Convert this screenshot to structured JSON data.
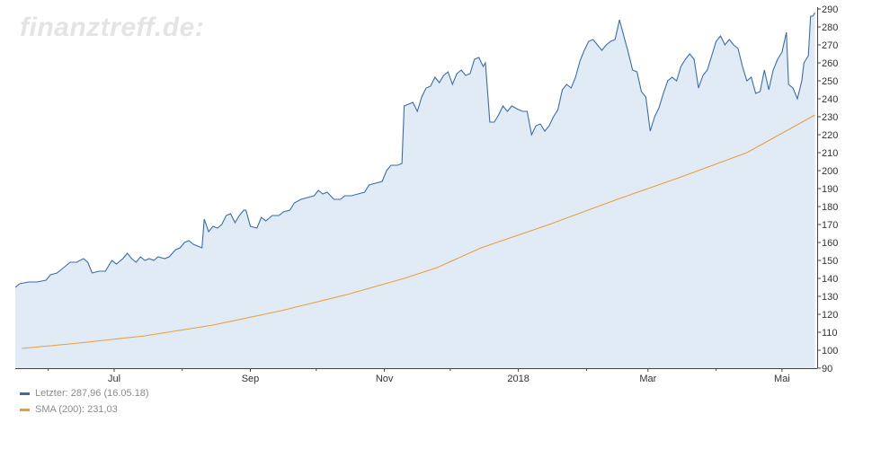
{
  "watermark": "finanztreff.de:",
  "colors": {
    "price_line": "#3a6ea8",
    "price_fill": "#e1ebf6",
    "sma_line": "#e8a03c",
    "axis": "#444444",
    "label": "#333333",
    "legend_text": "#8c8c8c"
  },
  "chart_data": {
    "type": "area",
    "xlim": [
      "2017-05-17",
      "2018-05-17"
    ],
    "ylim": [
      90,
      290
    ],
    "y_ticks": [
      90,
      100,
      110,
      120,
      130,
      140,
      150,
      160,
      170,
      180,
      190,
      200,
      210,
      220,
      230,
      240,
      250,
      260,
      270,
      280,
      290
    ],
    "x_tick_labels": [
      {
        "date": "2017-07-01",
        "label": "Jul"
      },
      {
        "date": "2017-09-01",
        "label": "Sep"
      },
      {
        "date": "2017-11-01",
        "label": "Nov"
      },
      {
        "date": "2018-01-01",
        "label": "2018"
      },
      {
        "date": "2018-03-01",
        "label": "Mar"
      },
      {
        "date": "2018-05-01",
        "label": "Mai"
      }
    ],
    "x_minor_ticks": [
      "2017-06-01",
      "2017-08-01",
      "2017-10-01",
      "2017-12-01",
      "2018-02-01",
      "2018-04-01"
    ],
    "grid": false,
    "legend_position": "bottom-left",
    "series": [
      {
        "name": "Letzter",
        "legend": "Letzter: 287,96 (16.05.18)",
        "points": [
          [
            "2017-05-17",
            135
          ],
          [
            "2017-05-19",
            137
          ],
          [
            "2017-05-23",
            138
          ],
          [
            "2017-05-27",
            138
          ],
          [
            "2017-05-31",
            139
          ],
          [
            "2017-06-02",
            142
          ],
          [
            "2017-06-05",
            143
          ],
          [
            "2017-06-08",
            146
          ],
          [
            "2017-06-11",
            149
          ],
          [
            "2017-06-14",
            149
          ],
          [
            "2017-06-17",
            151
          ],
          [
            "2017-06-19",
            149
          ],
          [
            "2017-06-21",
            143
          ],
          [
            "2017-06-24",
            144
          ],
          [
            "2017-06-27",
            144
          ],
          [
            "2017-06-30",
            150
          ],
          [
            "2017-07-02",
            148
          ],
          [
            "2017-07-05",
            151
          ],
          [
            "2017-07-07",
            154
          ],
          [
            "2017-07-09",
            151
          ],
          [
            "2017-07-11",
            149
          ],
          [
            "2017-07-13",
            152
          ],
          [
            "2017-07-15",
            150
          ],
          [
            "2017-07-17",
            151
          ],
          [
            "2017-07-19",
            150
          ],
          [
            "2017-07-21",
            152
          ],
          [
            "2017-07-24",
            151
          ],
          [
            "2017-07-26",
            152
          ],
          [
            "2017-07-29",
            156
          ],
          [
            "2017-07-31",
            157
          ],
          [
            "2017-08-02",
            160
          ],
          [
            "2017-08-04",
            161
          ],
          [
            "2017-08-06",
            159
          ],
          [
            "2017-08-08",
            158
          ],
          [
            "2017-08-10",
            157
          ],
          [
            "2017-08-11",
            173
          ],
          [
            "2017-08-13",
            166
          ],
          [
            "2017-08-15",
            169
          ],
          [
            "2017-08-17",
            168
          ],
          [
            "2017-08-19",
            170
          ],
          [
            "2017-08-21",
            175
          ],
          [
            "2017-08-23",
            176
          ],
          [
            "2017-08-25",
            171
          ],
          [
            "2017-08-27",
            175
          ],
          [
            "2017-08-29",
            178
          ],
          [
            "2017-08-30",
            178
          ],
          [
            "2017-09-01",
            169
          ],
          [
            "2017-09-04",
            168
          ],
          [
            "2017-09-06",
            174
          ],
          [
            "2017-09-08",
            172
          ],
          [
            "2017-09-11",
            175
          ],
          [
            "2017-09-14",
            175
          ],
          [
            "2017-09-16",
            177
          ],
          [
            "2017-09-19",
            178
          ],
          [
            "2017-09-21",
            182
          ],
          [
            "2017-09-24",
            184
          ],
          [
            "2017-09-27",
            185
          ],
          [
            "2017-09-30",
            186
          ],
          [
            "2017-10-02",
            189
          ],
          [
            "2017-10-04",
            187
          ],
          [
            "2017-10-06",
            188
          ],
          [
            "2017-10-09",
            184
          ],
          [
            "2017-10-12",
            184
          ],
          [
            "2017-10-14",
            186
          ],
          [
            "2017-10-17",
            186
          ],
          [
            "2017-10-20",
            187
          ],
          [
            "2017-10-23",
            188
          ],
          [
            "2017-10-25",
            192
          ],
          [
            "2017-10-28",
            193
          ],
          [
            "2017-10-31",
            194
          ],
          [
            "2017-11-02",
            200
          ],
          [
            "2017-11-04",
            203
          ],
          [
            "2017-11-07",
            203
          ],
          [
            "2017-11-09",
            204
          ],
          [
            "2017-11-10",
            236
          ],
          [
            "2017-11-12",
            237
          ],
          [
            "2017-11-14",
            238
          ],
          [
            "2017-11-16",
            233
          ],
          [
            "2017-11-18",
            241
          ],
          [
            "2017-11-20",
            246
          ],
          [
            "2017-11-22",
            247
          ],
          [
            "2017-11-24",
            252
          ],
          [
            "2017-11-26",
            249
          ],
          [
            "2017-11-28",
            253
          ],
          [
            "2017-11-30",
            255
          ],
          [
            "2017-12-02",
            248
          ],
          [
            "2017-12-04",
            254
          ],
          [
            "2017-12-06",
            256
          ],
          [
            "2017-12-08",
            253
          ],
          [
            "2017-12-10",
            254
          ],
          [
            "2017-12-12",
            262
          ],
          [
            "2017-12-14",
            263
          ],
          [
            "2017-12-16",
            258
          ],
          [
            "2017-12-17",
            260
          ],
          [
            "2017-12-19",
            227
          ],
          [
            "2017-12-21",
            227
          ],
          [
            "2017-12-23",
            231
          ],
          [
            "2017-12-25",
            236
          ],
          [
            "2017-12-27",
            233
          ],
          [
            "2017-12-29",
            236
          ],
          [
            "2018-01-01",
            234
          ],
          [
            "2018-01-03",
            233
          ],
          [
            "2018-01-05",
            233
          ],
          [
            "2018-01-07",
            220
          ],
          [
            "2018-01-09",
            225
          ],
          [
            "2018-01-11",
            226
          ],
          [
            "2018-01-13",
            222
          ],
          [
            "2018-01-15",
            225
          ],
          [
            "2018-01-17",
            230
          ],
          [
            "2018-01-19",
            234
          ],
          [
            "2018-01-21",
            245
          ],
          [
            "2018-01-23",
            248
          ],
          [
            "2018-01-25",
            246
          ],
          [
            "2018-01-27",
            252
          ],
          [
            "2018-01-29",
            261
          ],
          [
            "2018-01-31",
            267
          ],
          [
            "2018-02-02",
            272
          ],
          [
            "2018-02-04",
            273
          ],
          [
            "2018-02-06",
            270
          ],
          [
            "2018-02-08",
            267
          ],
          [
            "2018-02-10",
            270
          ],
          [
            "2018-02-12",
            272
          ],
          [
            "2018-02-14",
            273
          ],
          [
            "2018-02-16",
            284
          ],
          [
            "2018-02-18",
            275
          ],
          [
            "2018-02-20",
            266
          ],
          [
            "2018-02-22",
            256
          ],
          [
            "2018-02-24",
            255
          ],
          [
            "2018-02-26",
            244
          ],
          [
            "2018-02-28",
            241
          ],
          [
            "2018-03-02",
            222
          ],
          [
            "2018-03-04",
            230
          ],
          [
            "2018-03-06",
            235
          ],
          [
            "2018-03-08",
            243
          ],
          [
            "2018-03-10",
            250
          ],
          [
            "2018-03-12",
            252
          ],
          [
            "2018-03-14",
            250
          ],
          [
            "2018-03-16",
            258
          ],
          [
            "2018-03-18",
            262
          ],
          [
            "2018-03-20",
            265
          ],
          [
            "2018-03-22",
            262
          ],
          [
            "2018-03-24",
            246
          ],
          [
            "2018-03-26",
            253
          ],
          [
            "2018-03-28",
            256
          ],
          [
            "2018-03-30",
            264
          ],
          [
            "2018-04-01",
            272
          ],
          [
            "2018-04-03",
            275
          ],
          [
            "2018-04-05",
            270
          ],
          [
            "2018-04-07",
            273
          ],
          [
            "2018-04-09",
            270
          ],
          [
            "2018-04-11",
            268
          ],
          [
            "2018-04-13",
            258
          ],
          [
            "2018-04-15",
            250
          ],
          [
            "2018-04-17",
            252
          ],
          [
            "2018-04-19",
            243
          ],
          [
            "2018-04-21",
            244
          ],
          [
            "2018-04-23",
            256
          ],
          [
            "2018-04-25",
            245
          ],
          [
            "2018-04-27",
            256
          ],
          [
            "2018-04-29",
            262
          ],
          [
            "2018-05-01",
            266
          ],
          [
            "2018-05-03",
            277
          ],
          [
            "2018-05-04",
            248
          ],
          [
            "2018-05-06",
            246
          ],
          [
            "2018-05-08",
            240
          ],
          [
            "2018-05-10",
            250
          ],
          [
            "2018-05-11",
            260
          ],
          [
            "2018-05-13",
            264
          ],
          [
            "2018-05-14",
            286
          ],
          [
            "2018-05-15",
            286
          ],
          [
            "2018-05-16",
            288
          ]
        ]
      },
      {
        "name": "SMA (200)",
        "legend": "SMA (200): 231,03",
        "points": [
          [
            "2017-05-20",
            101
          ],
          [
            "2017-06-15",
            104
          ],
          [
            "2017-07-15",
            108
          ],
          [
            "2017-08-15",
            114
          ],
          [
            "2017-09-15",
            122
          ],
          [
            "2017-10-15",
            131
          ],
          [
            "2017-11-10",
            140
          ],
          [
            "2017-11-25",
            146
          ],
          [
            "2017-12-15",
            157
          ],
          [
            "2018-01-15",
            170
          ],
          [
            "2018-02-15",
            184
          ],
          [
            "2018-03-15",
            196
          ],
          [
            "2018-04-15",
            210
          ],
          [
            "2018-05-16",
            231
          ]
        ]
      }
    ]
  }
}
